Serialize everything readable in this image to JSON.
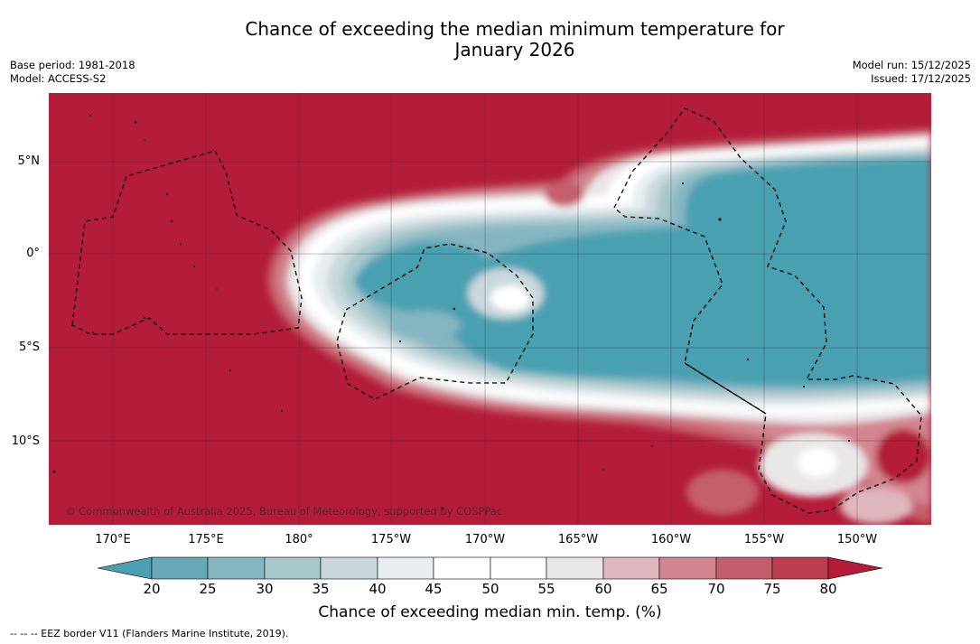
{
  "title": {
    "line1": "Chance of exceeding the median minimum temperature for",
    "line2": "January 2026"
  },
  "meta_left": {
    "base_period": "Base period: 1981-2018",
    "model": "Model: ACCESS-S2"
  },
  "meta_right": {
    "model_run": "Model run: 15/12/2025",
    "issued": "Issued: 17/12/2025"
  },
  "map": {
    "lat_labels": [
      "5°N",
      "0°",
      "5°S",
      "10°S"
    ],
    "lon_labels": [
      "170°E",
      "175°E",
      "180°",
      "175°W",
      "170°W",
      "165°W",
      "160°W",
      "155°W",
      "150°W"
    ],
    "copyright": "© Commonwealth of Australia 2025, Bureau of Meteorology, supported by COSPPac"
  },
  "colorbar": {
    "ticks": [
      "20",
      "25",
      "30",
      "35",
      "40",
      "45",
      "50",
      "55",
      "60",
      "65",
      "70",
      "75",
      "80"
    ],
    "label": "Chance of exceeding median min. temp. (%)",
    "colors": {
      "below_20": "#4aa0b1",
      "c20_25": "#67a9b7",
      "c25_30": "#85b5c2",
      "c30_35": "#a6c7cb",
      "c35_40": "#c9d8dc",
      "c40_45": "#e8edf0",
      "c45_50": "#ffffff",
      "c50_55": "#ffffff",
      "c55_60": "#e9e6e8",
      "c60_65": "#dfb6bd",
      "c65_70": "#d2848f",
      "c70_75": "#c55e6c",
      "c75_80": "#bc3d4e",
      "above_80": "#b41d39"
    }
  },
  "footer": {
    "legend": "--  --  -- EEZ border V11 (Flanders Marine Institute, 2019)."
  }
}
